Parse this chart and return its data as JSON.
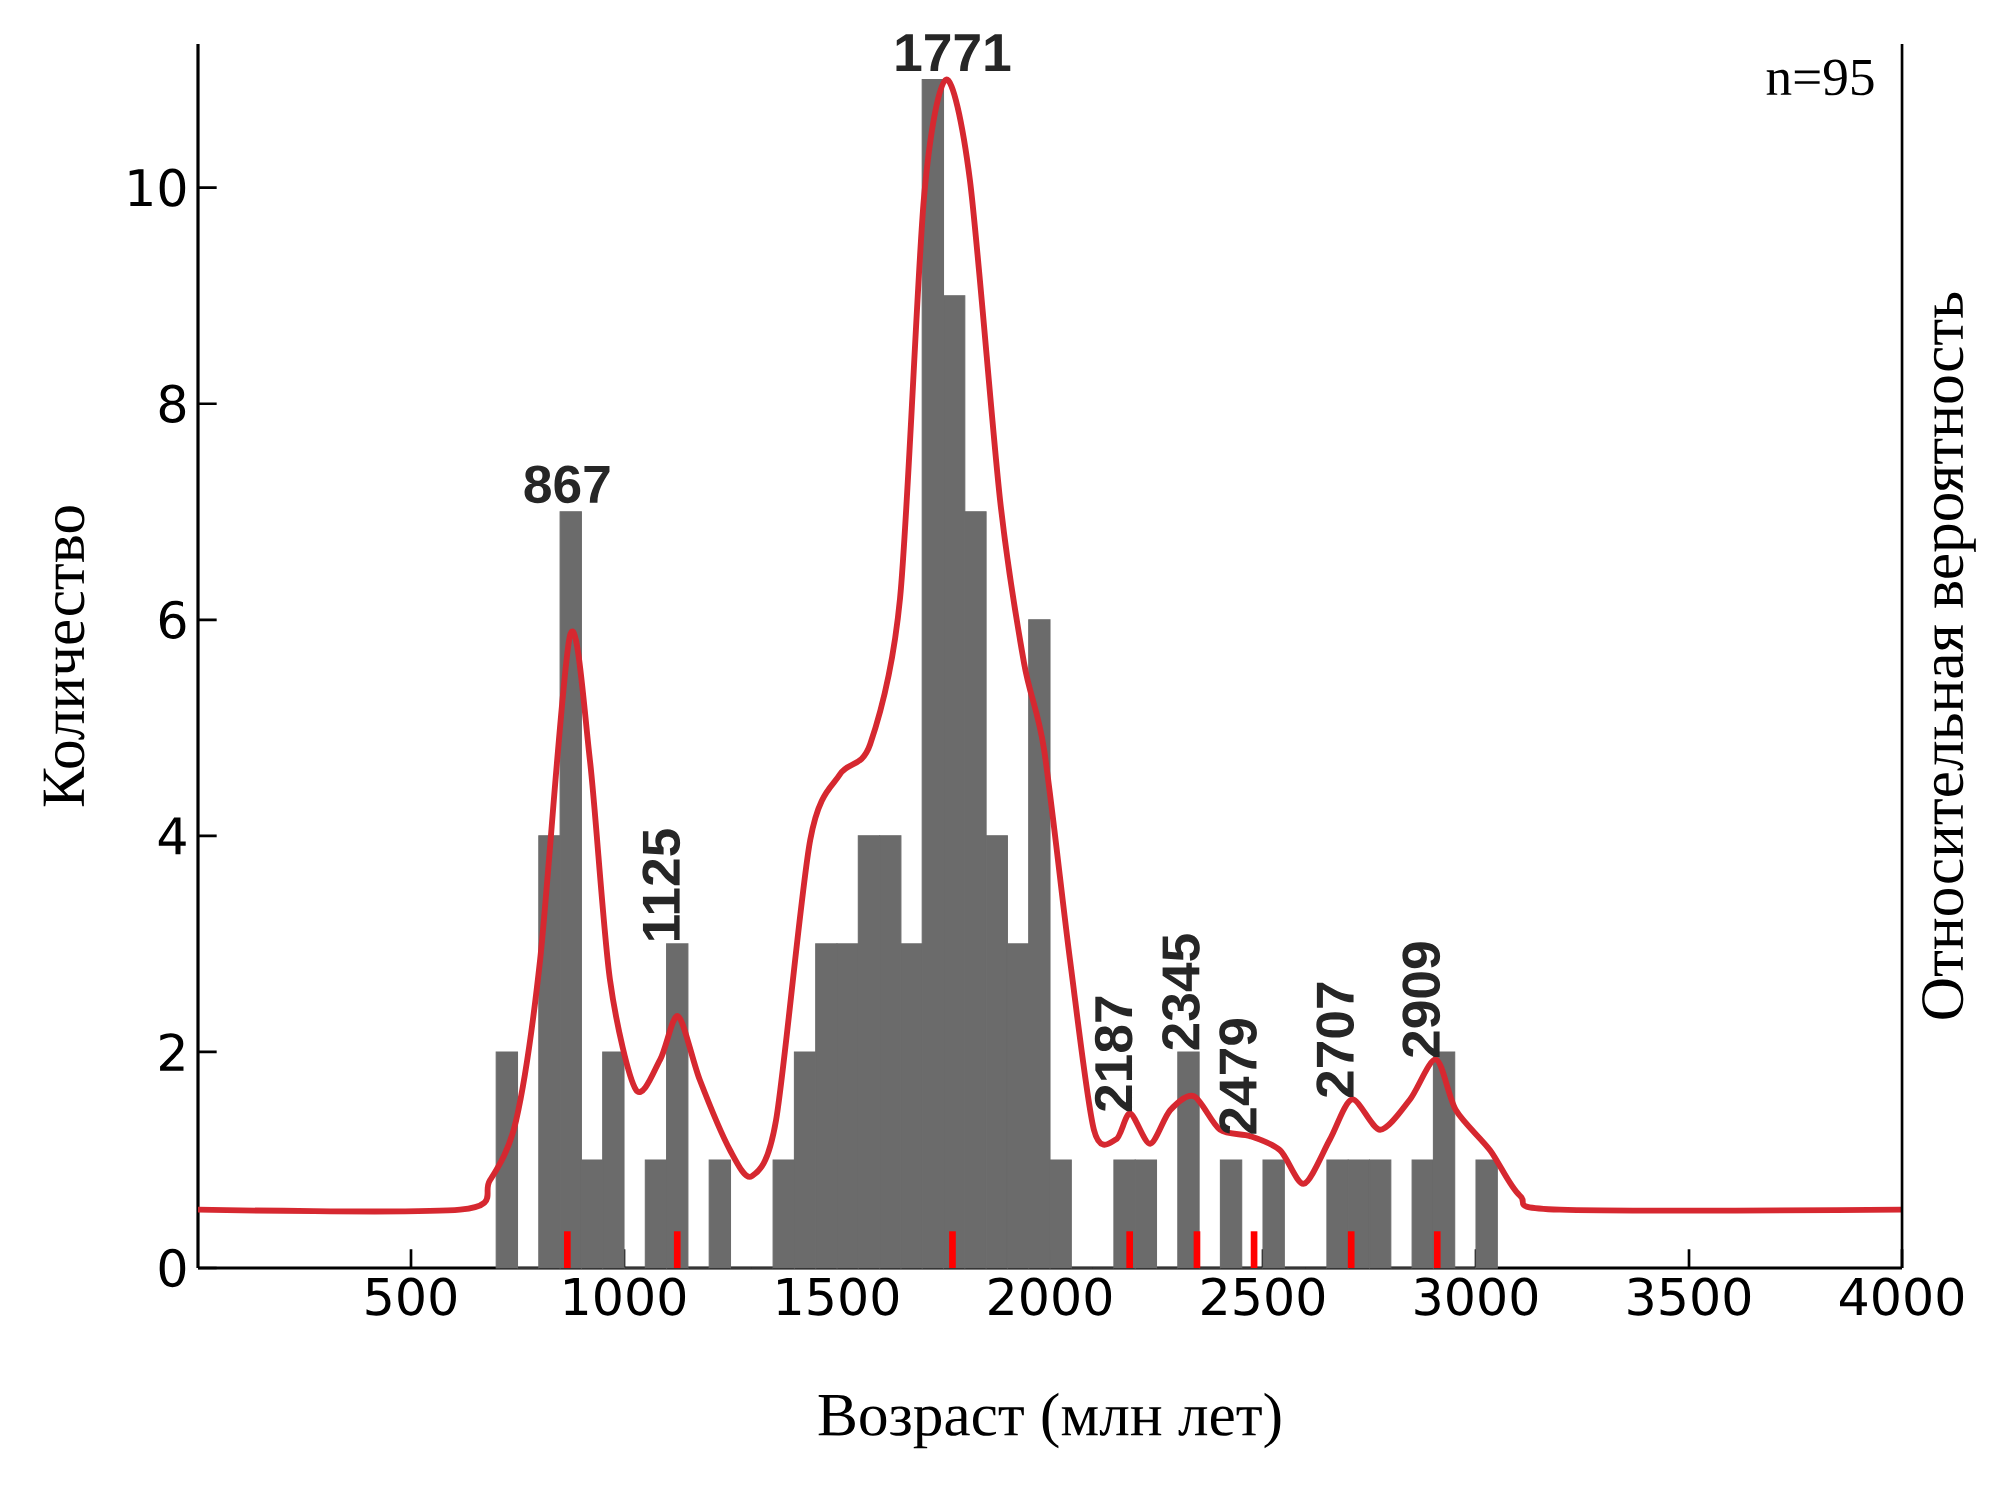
{
  "chart_data": {
    "type": "histogram",
    "xlabel": "Возраст (млн лет)",
    "ylabel": "Количество",
    "y2label": "Относительная вероятность",
    "xlim": [
      0,
      4000
    ],
    "ylim": [
      0,
      11.33
    ],
    "xticks": [
      500,
      1000,
      1500,
      2000,
      2500,
      3000,
      3500,
      4000
    ],
    "yticks": [
      0,
      2,
      4,
      6,
      8,
      10
    ],
    "grid": false,
    "series": [
      {
        "color": "#6b6b6b",
        "bins": [
          700,
          750,
          800,
          850,
          900,
          950,
          1000,
          1050,
          1100,
          1150,
          1200,
          1250,
          1300,
          1350,
          1400,
          1450,
          1500,
          1550,
          1600,
          1650,
          1700,
          1750,
          1800,
          1850,
          1900,
          1950,
          2000,
          2050,
          2100,
          2150,
          2200,
          2250,
          2300,
          2350,
          2400,
          2450,
          2500,
          2550,
          2600,
          2650,
          2700,
          2750,
          2800,
          2850,
          2900,
          2950,
          3000,
          3050
        ],
        "values": [
          2,
          0,
          4,
          7,
          1,
          2,
          0,
          1,
          3,
          0,
          1,
          0,
          0,
          1,
          2,
          3,
          3,
          4,
          4,
          3,
          11,
          9,
          7,
          4,
          3,
          6,
          1,
          0,
          0,
          1,
          1,
          0,
          2,
          0,
          1,
          0,
          1,
          0,
          0,
          1,
          1,
          1,
          0,
          1,
          2,
          0,
          1
        ]
      },
      {
        "type": "line",
        "color": "#d62830",
        "x": [
          0,
          615,
          685,
          747,
          803,
          873,
          920,
          967,
          1028,
          1085,
          1127,
          1178,
          1249,
          1300,
          1357,
          1437,
          1507,
          1578,
          1648,
          1704,
          1756,
          1812,
          1883,
          1939,
          1986,
          2047,
          2103,
          2155,
          2188,
          2235,
          2282,
          2338,
          2399,
          2470,
          2540,
          2596,
          2657,
          2709,
          2775,
          2845,
          2906,
          2953,
          3033,
          3103,
          3197,
          4000
        ],
        "values": [
          0.54,
          0.54,
          0.81,
          1.37,
          2.85,
          5.85,
          4.7,
          2.67,
          1.65,
          1.93,
          2.33,
          1.74,
          1.09,
          0.85,
          1.37,
          3.96,
          4.57,
          4.85,
          6.2,
          9.9,
          11.0,
          10.07,
          7.1,
          5.6,
          4.8,
          2.85,
          1.28,
          1.19,
          1.43,
          1.15,
          1.46,
          1.59,
          1.28,
          1.22,
          1.09,
          0.78,
          1.19,
          1.56,
          1.28,
          1.56,
          1.93,
          1.46,
          1.09,
          0.67,
          0.54,
          0.54
        ]
      }
    ],
    "annotations": [
      "n=95",
      {
        "text": "867",
        "x": 867,
        "y": 7.05
      },
      {
        "text": "1125",
        "x": 1125,
        "y": 3
      },
      {
        "text": "1771",
        "x": 1771,
        "y": 11.05
      },
      {
        "text": "2187",
        "x": 2187,
        "y": 1.43
      },
      {
        "text": "2345",
        "x": 2345,
        "y": 2
      },
      {
        "text": "2479",
        "x": 2479,
        "y": 1.22
      },
      {
        "text": "2707",
        "x": 2707,
        "y": 1.56
      },
      {
        "text": "2909",
        "x": 2909,
        "y": 1.93
      }
    ]
  }
}
